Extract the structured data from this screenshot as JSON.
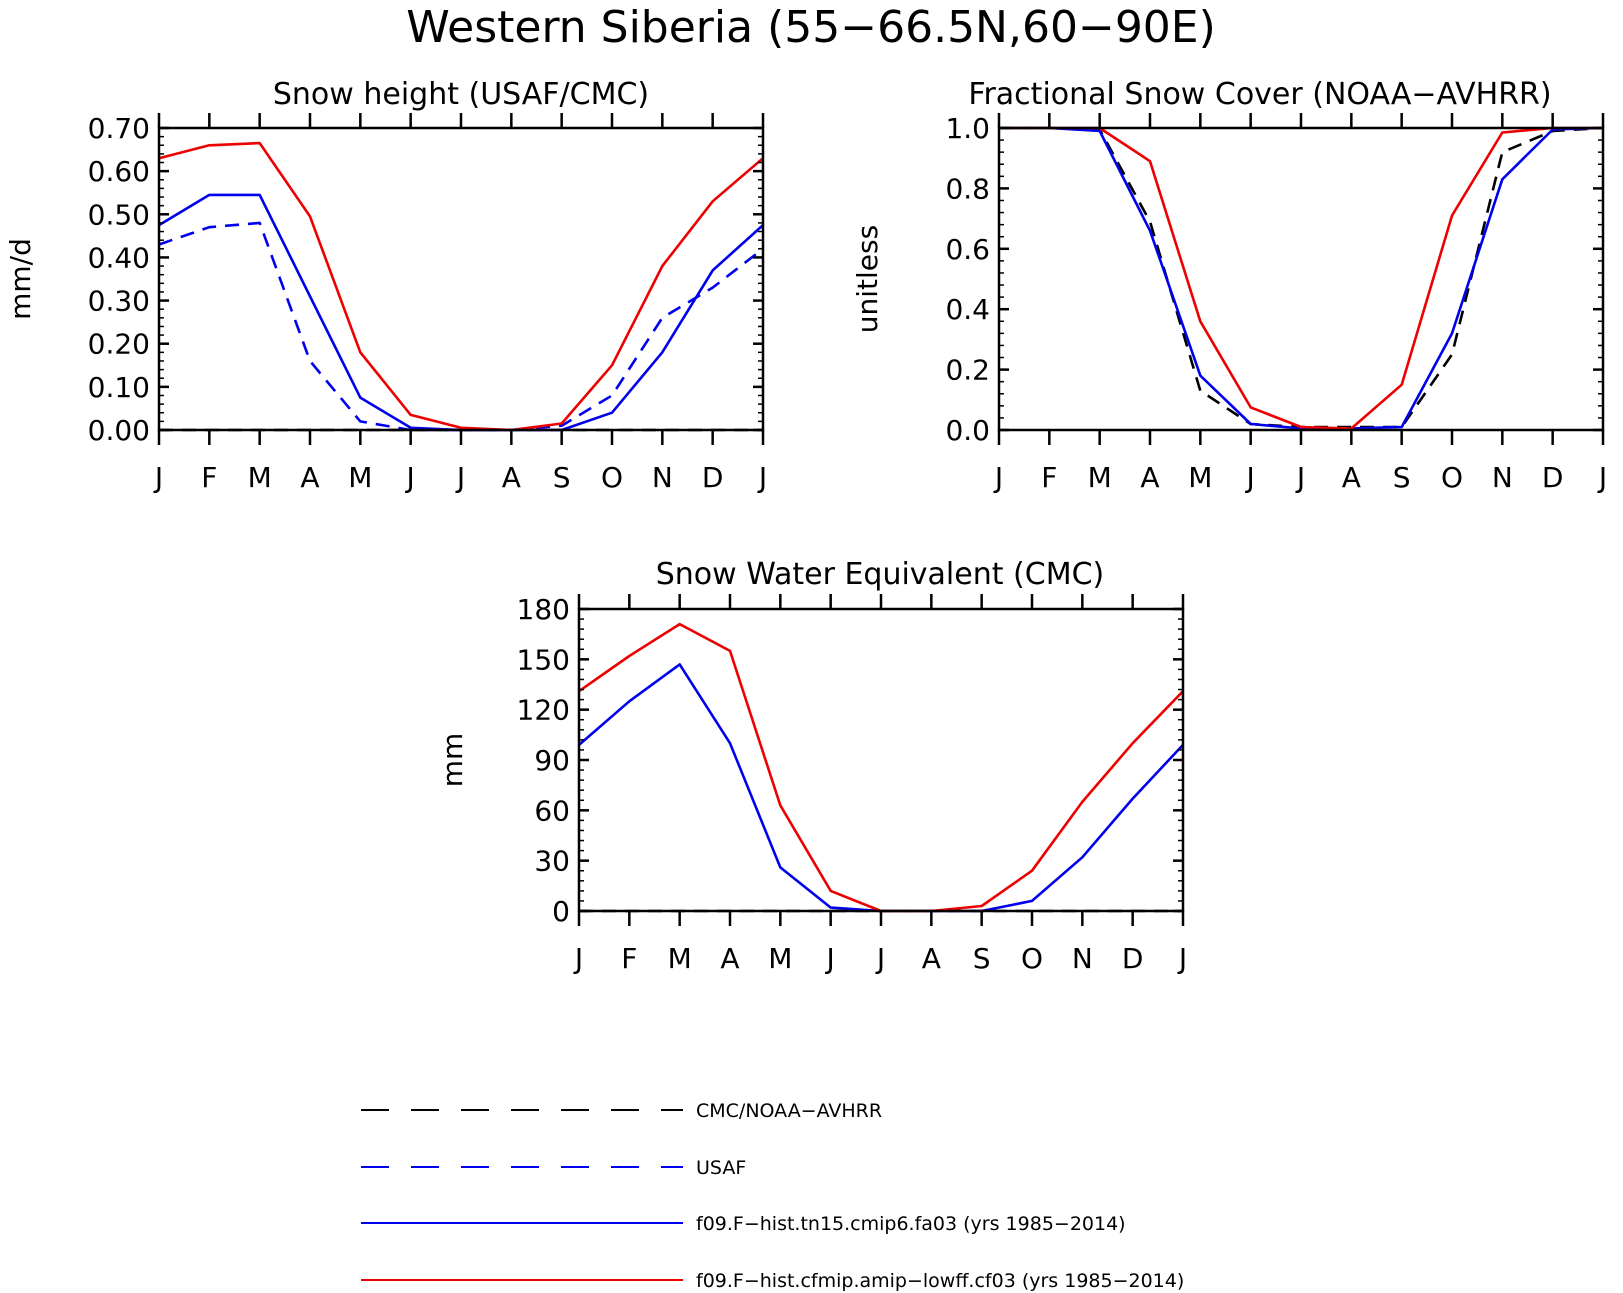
{
  "figure": {
    "title": "Western Siberia (55−66.5N,60−90E)"
  },
  "styles": {
    "CMC/NOAA-AVHRR": {
      "color": "#000000",
      "dash": true
    },
    "USAF": {
      "color": "#0000ee",
      "dash": true
    },
    "f09.F−hist.tn15.cmip6.fa03 (yrs 1985−2014)": {
      "color": "#0000ee",
      "dash": false
    },
    "f09.F−hist.cfmip.amip−lowff.cf03 (yrs 1985−2014)": {
      "color": "#ee0000",
      "dash": false
    }
  },
  "legend": [
    "CMC/NOAA−AVHRR",
    "USAF",
    "f09.F−hist.tn15.cmip6.fa03 (yrs 1985−2014)",
    "f09.F−hist.cfmip.amip−lowff.cf03 (yrs 1985−2014)"
  ],
  "chart_data": [
    {
      "type": "line",
      "title": "Snow height (USAF/CMC)",
      "ylabel": "mm/d",
      "xlabel": "",
      "categories": [
        "J",
        "F",
        "M",
        "A",
        "M",
        "J",
        "J",
        "A",
        "S",
        "O",
        "N",
        "D",
        "J"
      ],
      "ylim": [
        0,
        0.7
      ],
      "yticks": [
        "0.00",
        "0.10",
        "0.20",
        "0.30",
        "0.40",
        "0.50",
        "0.60",
        "0.70"
      ],
      "series": [
        {
          "name": "CMC/NOAA−AVHRR",
          "values": [
            0,
            0,
            0,
            0,
            0,
            0,
            0,
            0,
            0,
            0,
            0,
            0,
            0
          ]
        },
        {
          "name": "USAF",
          "values": [
            0.43,
            0.47,
            0.48,
            0.16,
            0.02,
            0.0,
            0.0,
            0.0,
            0.01,
            0.08,
            0.26,
            0.33,
            0.42
          ]
        },
        {
          "name": "f09.F−hist.tn15.cmip6.fa03 (yrs 1985−2014)",
          "values": [
            0.475,
            0.545,
            0.545,
            0.31,
            0.075,
            0.005,
            0.0,
            0.0,
            0.0,
            0.04,
            0.18,
            0.37,
            0.475
          ]
        },
        {
          "name": "f09.F−hist.cfmip.amip−lowff.cf03 (yrs 1985−2014)",
          "values": [
            0.63,
            0.66,
            0.665,
            0.495,
            0.18,
            0.035,
            0.005,
            0.0,
            0.015,
            0.15,
            0.38,
            0.53,
            0.63
          ]
        }
      ]
    },
    {
      "type": "line",
      "title": "Fractional Snow Cover (NOAA−AVHRR)",
      "ylabel": "unitless",
      "xlabel": "",
      "categories": [
        "J",
        "F",
        "M",
        "A",
        "M",
        "J",
        "J",
        "A",
        "S",
        "O",
        "N",
        "D",
        "J"
      ],
      "ylim": [
        0,
        1.0
      ],
      "yticks": [
        "0.0",
        "0.2",
        "0.4",
        "0.6",
        "0.8",
        "1.0"
      ],
      "series": [
        {
          "name": "CMC/NOAA−AVHRR",
          "values": [
            1.0,
            1.0,
            0.995,
            0.69,
            0.13,
            0.02,
            0.01,
            0.01,
            0.01,
            0.25,
            0.92,
            0.99,
            1.0
          ]
        },
        {
          "name": "f09.F−hist.tn15.cmip6.fa03 (yrs 1985−2014)",
          "values": [
            1.0,
            1.0,
            0.99,
            0.66,
            0.18,
            0.02,
            0.005,
            0.005,
            0.01,
            0.32,
            0.83,
            0.995,
            1.0
          ]
        },
        {
          "name": "f09.F−hist.cfmip.amip−lowff.cf03 (yrs 1985−2014)",
          "values": [
            1.0,
            1.0,
            1.0,
            0.89,
            0.36,
            0.075,
            0.01,
            0.005,
            0.15,
            0.71,
            0.985,
            1.0,
            1.0
          ]
        }
      ]
    },
    {
      "type": "line",
      "title": "Snow Water Equivalent (CMC)",
      "ylabel": "mm",
      "xlabel": "",
      "categories": [
        "J",
        "F",
        "M",
        "A",
        "M",
        "J",
        "J",
        "A",
        "S",
        "O",
        "N",
        "D",
        "J"
      ],
      "ylim": [
        0,
        180
      ],
      "yticks": [
        "0",
        "30",
        "60",
        "90",
        "120",
        "150",
        "180"
      ],
      "series": [
        {
          "name": "CMC/NOAA−AVHRR",
          "values": [
            0,
            0,
            0,
            0,
            0,
            0,
            0,
            0,
            0,
            0,
            0,
            0,
            0
          ]
        },
        {
          "name": "f09.F−hist.tn15.cmip6.fa03 (yrs 1985−2014)",
          "values": [
            99,
            125,
            147,
            100,
            26,
            2,
            0,
            0,
            0,
            6,
            32,
            67,
            99
          ]
        },
        {
          "name": "f09.F−hist.cfmip.amip−lowff.cf03 (yrs 1985−2014)",
          "values": [
            131,
            152,
            171,
            155,
            63,
            12,
            0,
            0,
            3,
            24,
            65,
            100,
            131
          ]
        }
      ]
    }
  ]
}
